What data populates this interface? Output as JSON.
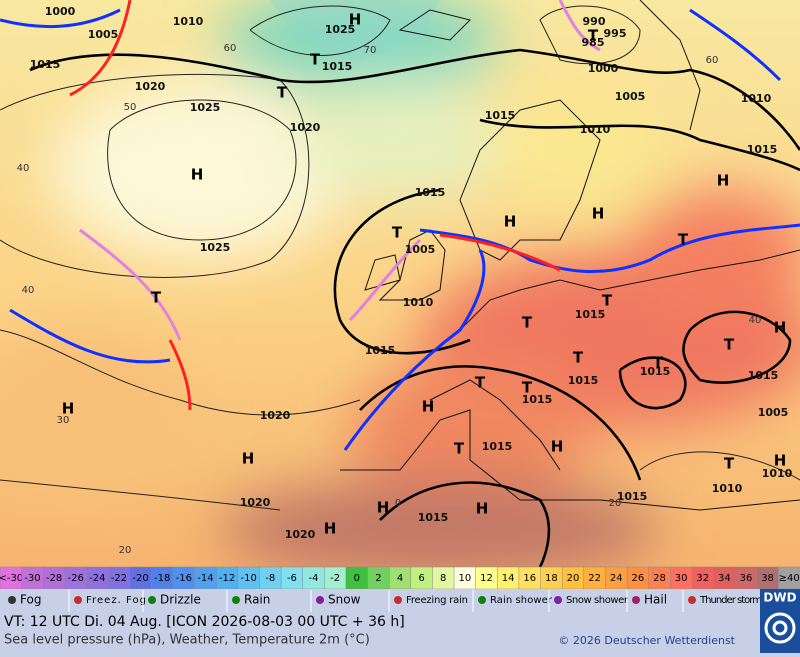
{
  "map": {
    "pressure_labels": [
      "1000",
      "1005",
      "1015",
      "1010",
      "1020",
      "1025",
      "1020",
      "1025",
      "1025",
      "1015",
      "990",
      "995",
      "985",
      "1000",
      "1005",
      "1010",
      "1015",
      "1010",
      "1015",
      "1015",
      "1005",
      "1010",
      "1015",
      "1015",
      "1015",
      "1015",
      "1015",
      "1015",
      "1005",
      "1020",
      "1015",
      "1010",
      "1010",
      "1015",
      "1020",
      "1015",
      "1020"
    ],
    "centers": [
      "H",
      "T",
      "T",
      "T",
      "H",
      "T",
      "H",
      "H",
      "T",
      "H",
      "T",
      "T",
      "T",
      "H",
      "T",
      "T",
      "T",
      "T",
      "T",
      "H",
      "H",
      "T",
      "H",
      "H",
      "T",
      "H",
      "H",
      "H",
      "H"
    ],
    "isotherms": [
      "60",
      "70",
      "60",
      "50",
      "40",
      "40",
      "30",
      "20",
      "0",
      "20",
      "40"
    ]
  },
  "scale": {
    "labels": [
      "<-30",
      "-30",
      "-28",
      "-26",
      "-24",
      "-22",
      "-20",
      "-18",
      "-16",
      "-14",
      "-12",
      "-10",
      "-8",
      "-6",
      "-4",
      "-2",
      "0",
      "2",
      "4",
      "6",
      "8",
      "10",
      "12",
      "14",
      "16",
      "18",
      "20",
      "22",
      "24",
      "26",
      "28",
      "30",
      "32",
      "34",
      "36",
      "38",
      "≥40"
    ],
    "colors": [
      "#e070e0",
      "#c070d8",
      "#b070d8",
      "#a070e0",
      "#9070e0",
      "#8070e0",
      "#6070e0",
      "#5080e8",
      "#5090f0",
      "#50a0f0",
      "#50b0f0",
      "#60c0f0",
      "#70d0f0",
      "#80e0f0",
      "#90e8e0",
      "#a0f0d0",
      "#40c040",
      "#70d060",
      "#a0e070",
      "#c0f080",
      "#e0f8a0",
      "#ffffe0",
      "#ffff90",
      "#fff070",
      "#ffe060",
      "#ffd050",
      "#ffc040",
      "#ffb040",
      "#ffa040",
      "#ff9040",
      "#ff8050",
      "#ff7060",
      "#f06060",
      "#e06060",
      "#d06868",
      "#b07070",
      "#a0a0a0"
    ]
  },
  "legend": [
    "Fog",
    "Freez. Fog",
    "Drizzle",
    "Rain",
    "Snow",
    "Freezing rain",
    "Rain shower",
    "Snow shower",
    "Hail",
    "Thunder storm"
  ],
  "footer": {
    "valid_time": "VT: 12 UTC Di.  04 Aug. [ICON 2026-08-03  00 UTC + 36 h]",
    "description": "Sea level pressure (hPa), Weather, Temperature 2m (°C)",
    "copyright": "© 2026 Deutscher Wetterdienst",
    "logo": "DWD"
  }
}
